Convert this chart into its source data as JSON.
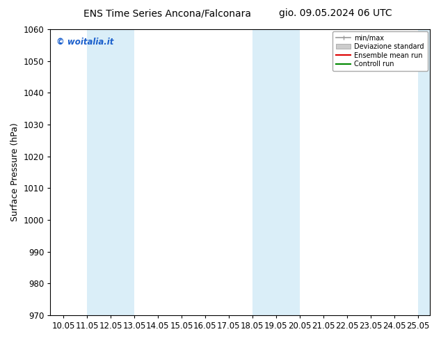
{
  "title_left": "ENS Time Series Ancona/Falconara",
  "title_right": "gio. 09.05.2024 06 UTC",
  "ylabel": "Surface Pressure (hPa)",
  "ylim": [
    970,
    1060
  ],
  "yticks": [
    970,
    980,
    990,
    1000,
    1010,
    1020,
    1030,
    1040,
    1050,
    1060
  ],
  "xlim": [
    9.5,
    25.55
  ],
  "xticks": [
    10.05,
    11.05,
    12.05,
    13.05,
    14.05,
    15.05,
    16.05,
    17.05,
    18.05,
    19.05,
    20.05,
    21.05,
    22.05,
    23.05,
    24.05,
    25.05
  ],
  "xticklabels": [
    "10.05",
    "11.05",
    "12.05",
    "13.05",
    "14.05",
    "15.05",
    "16.05",
    "17.05",
    "18.05",
    "19.05",
    "20.05",
    "21.05",
    "22.05",
    "23.05",
    "24.05",
    "25.05"
  ],
  "shaded_bands": [
    {
      "xmin": 11.05,
      "xmax": 13.05
    },
    {
      "xmin": 18.05,
      "xmax": 20.05
    },
    {
      "xmin": 25.05,
      "xmax": 25.55
    }
  ],
  "band_color": "#daeef8",
  "watermark_text": "© woitalia.it",
  "watermark_color": "#1a5fcc",
  "legend_labels": [
    "min/max",
    "Deviazione standard",
    "Ensemble mean run",
    "Controll run"
  ],
  "background_color": "#ffffff",
  "title_fontsize": 10,
  "ylabel_fontsize": 9,
  "tick_fontsize": 8.5
}
